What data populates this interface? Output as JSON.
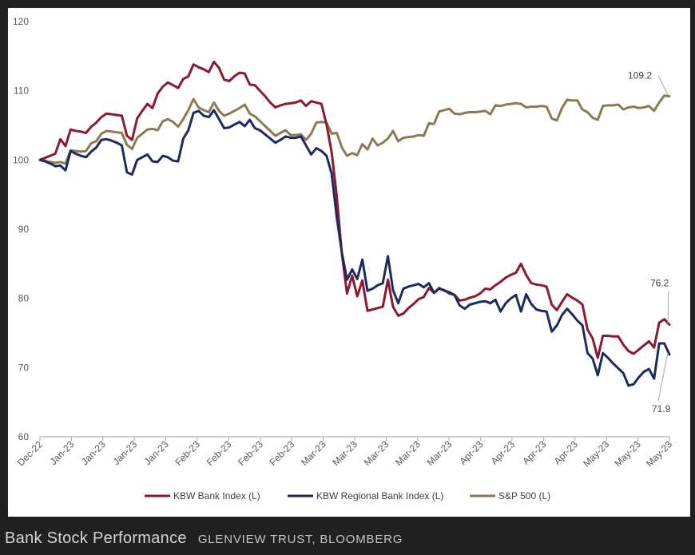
{
  "caption": {
    "title": "Bank Stock Performance",
    "source": "GLENVIEW TRUST, BLOOMBERG"
  },
  "chart_data": {
    "type": "line",
    "title": "",
    "xlabel": "",
    "ylabel": "",
    "ylim": [
      60,
      120
    ],
    "yticks": [
      60,
      70,
      80,
      90,
      100,
      110,
      120
    ],
    "x_tick_labels": [
      "Dec-22",
      "Jan-23",
      "Jan-23",
      "Jan-23",
      "Jan-23",
      "Feb-23",
      "Feb-23",
      "Feb-23",
      "Feb-23",
      "Mar-23",
      "Mar-23",
      "Mar-23",
      "Mar-23",
      "Mar-23",
      "Apr-23",
      "Apr-23",
      "Apr-23",
      "Apr-23",
      "May-23",
      "May-23",
      "May-23"
    ],
    "grid": false,
    "legend_position": "bottom",
    "series": [
      {
        "name": "KBW Bank Index (L)",
        "color": "#8b1a2f",
        "values": [
          100,
          100.3,
          100.6,
          100.9,
          103,
          102,
          104.4,
          104.2,
          104.1,
          103.9,
          104.8,
          105.4,
          106.2,
          106.7,
          106.6,
          106.5,
          106.4,
          103.5,
          102.9,
          106,
          107.1,
          108.1,
          107.5,
          109.6,
          110.6,
          111.2,
          110.8,
          110.4,
          111.7,
          112.1,
          113.8,
          113.4,
          113.1,
          112.7,
          114.2,
          113.3,
          111.6,
          111.4,
          112.1,
          112.6,
          112.5,
          110.9,
          110.8,
          110,
          109.2,
          108.3,
          107.6,
          107.9,
          108.1,
          108.2,
          108.3,
          108.6,
          107.8,
          108.5,
          108.3,
          108.1,
          105.1,
          101.1,
          94.7,
          86.4,
          80.7,
          83.3,
          80.3,
          82.6,
          78.2,
          78.4,
          78.6,
          78.8,
          82.7,
          78.8,
          77.5,
          77.8,
          78.6,
          79.2,
          79.9,
          80.2,
          81.5,
          80.8,
          81.4,
          81.2,
          80.7,
          80.5,
          79.7,
          79.8,
          80.1,
          80.3,
          80.7,
          81.4,
          81.3,
          81.9,
          82.4,
          83,
          83.4,
          83.7,
          85,
          83.4,
          82.2,
          82,
          81.9,
          81.7,
          79.1,
          78.3,
          79.5,
          80.6,
          80.1,
          79.7,
          79.1,
          75.5,
          74.2,
          71.4,
          74.6,
          74.6,
          74.5,
          74.5,
          73.3,
          72.4,
          72,
          72.6,
          73.2,
          73.8,
          72.9,
          76.5,
          77,
          76.2
        ]
      },
      {
        "name": "KBW Regional Bank Index (L)",
        "color": "#1f2a5c",
        "values": [
          100,
          99.8,
          99.5,
          99.1,
          99.2,
          98.5,
          101.3,
          100.9,
          100.6,
          100.4,
          101.2,
          101.8,
          102.9,
          103,
          102.8,
          102.5,
          102.1,
          98.2,
          97.9,
          100,
          100.4,
          100.8,
          99.8,
          99.7,
          100.6,
          100.4,
          99.9,
          99.8,
          103.1,
          104.3,
          106.8,
          107.1,
          106.4,
          106.2,
          107.2,
          105.9,
          104.6,
          104.7,
          105.1,
          105.5,
          104.9,
          105.8,
          104.6,
          104.3,
          103.7,
          103.1,
          102.5,
          102.9,
          103.4,
          103.2,
          103.2,
          103.4,
          102.1,
          100.8,
          101.7,
          101.3,
          100.6,
          98,
          91.7,
          86.6,
          82.7,
          84.2,
          82.8,
          85.6,
          81.1,
          81.4,
          81.9,
          82.2,
          86.1,
          81.2,
          79.3,
          81.4,
          81.7,
          81.9,
          82.1,
          81.6,
          82.2,
          80.8,
          81.5,
          81.1,
          80.9,
          80.5,
          79,
          78.5,
          79.1,
          79.3,
          79.5,
          79.6,
          79.3,
          79.8,
          78.1,
          79.3,
          80,
          80.5,
          78.1,
          80.6,
          79.2,
          78.4,
          78.2,
          78.1,
          75.2,
          76.1,
          77.6,
          78.5,
          77.7,
          76.8,
          76.1,
          72.1,
          71.3,
          68.9,
          72.1,
          71.4,
          70.6,
          69.9,
          69.2,
          67.4,
          67.6,
          68.6,
          69.4,
          69.8,
          68.4,
          73.5,
          73.5,
          71.9
        ]
      },
      {
        "name": "S&P 500 (L)",
        "color": "#8b7a53",
        "values": [
          100,
          99.9,
          99.7,
          99.6,
          99.7,
          99.5,
          101.4,
          101.3,
          101.2,
          101.3,
          102.4,
          102.7,
          103.8,
          104.2,
          104.1,
          104,
          103.9,
          102.2,
          101.6,
          103.2,
          103.8,
          104.4,
          104.5,
          104.3,
          105.6,
          105.9,
          105.5,
          104.8,
          105.9,
          107.2,
          108.8,
          107.6,
          107.2,
          106.9,
          108.3,
          107.1,
          106.4,
          106.7,
          107.1,
          107.5,
          108,
          106.7,
          106.3,
          105.6,
          104.9,
          104.2,
          103.5,
          103.9,
          104.3,
          103.6,
          103.6,
          103.7,
          102.9,
          103.8,
          105.4,
          105.5,
          105.4,
          103.8,
          103.9,
          101.8,
          100.6,
          101,
          100.7,
          102.3,
          101.5,
          103.1,
          102.1,
          102.5,
          103.1,
          104.2,
          102.7,
          103.2,
          103.3,
          103.4,
          103.6,
          103.5,
          105.3,
          105.2,
          107,
          107.2,
          107.4,
          106.7,
          106.6,
          106.8,
          106.9,
          106.9,
          107,
          107.1,
          106.6,
          107.9,
          107.8,
          108,
          108.1,
          108.2,
          108.1,
          107.6,
          107.7,
          107.7,
          107.8,
          107.7,
          106,
          105.7,
          107.5,
          108.7,
          108.6,
          108.6,
          107.3,
          106.9,
          106.1,
          105.8,
          107.8,
          107.9,
          107.9,
          108,
          107.3,
          107.6,
          107.7,
          107.5,
          107.6,
          107.8,
          107.1,
          108.3,
          109.3,
          109.2
        ]
      }
    ],
    "end_labels": [
      {
        "text": "109.2",
        "series": 2
      },
      {
        "text": "76.2",
        "series": 0
      },
      {
        "text": "71.9",
        "series": 1
      }
    ]
  }
}
